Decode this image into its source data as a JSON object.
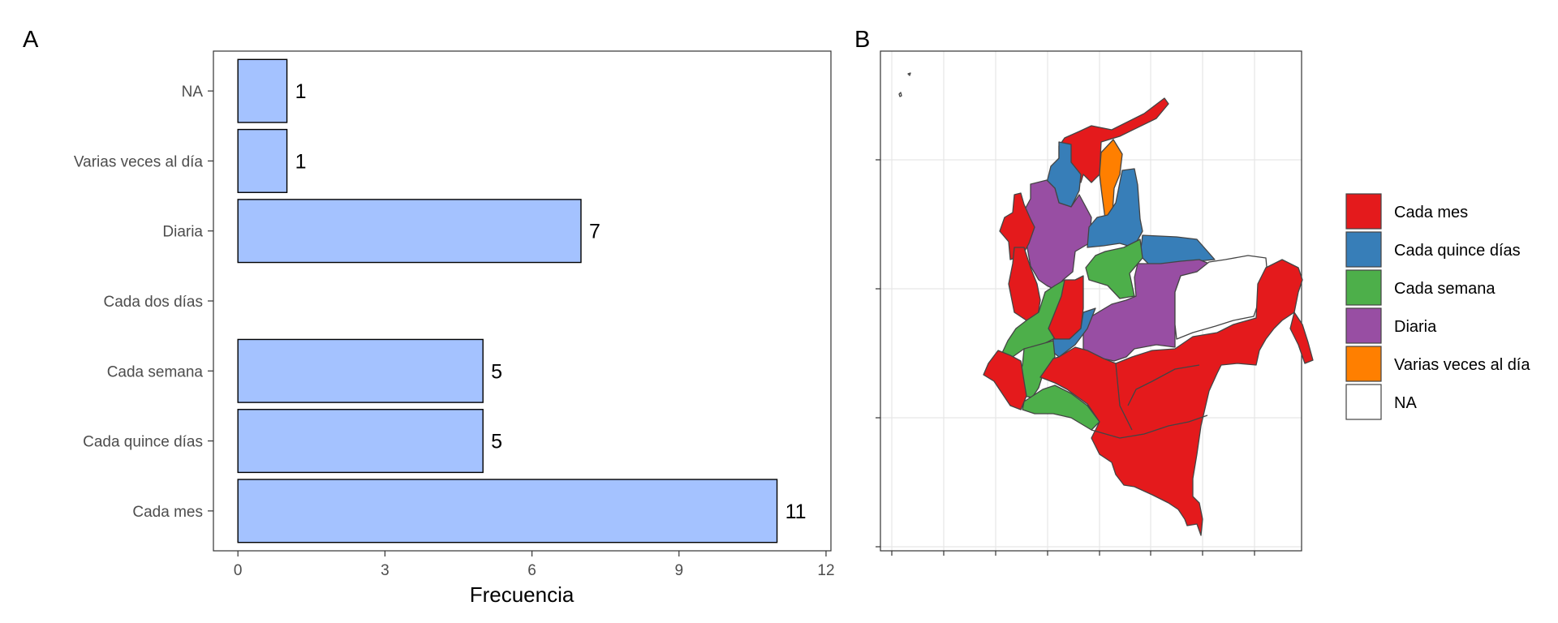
{
  "panels": {
    "a_tag": "A",
    "b_tag": "B"
  },
  "chart_data": [
    {
      "type": "bar",
      "orientation": "horizontal",
      "categories": [
        "Cada mes",
        "Cada quince días",
        "Cada semana",
        "Cada dos días",
        "Diaria",
        "Varias veces al día",
        "NA"
      ],
      "values": [
        11,
        5,
        5,
        null,
        7,
        1,
        1
      ],
      "data_labels": [
        "11",
        "5",
        "5",
        "",
        "7",
        "1",
        "1"
      ],
      "xlabel": "Frecuencia",
      "ylabel": "",
      "xlim": [
        -0.5,
        12.1
      ],
      "xticks": [
        "0",
        "3",
        "6",
        "9",
        "12"
      ],
      "bar_color": "#a4c2ff",
      "bar_outline": "#000000",
      "grid": false
    },
    {
      "type": "choropleth",
      "region": "Colombia",
      "axis_labels_shown": false,
      "grid": true,
      "legend": {
        "position": "right",
        "entries": [
          {
            "label": "Cada mes",
            "color": "#e41a1c"
          },
          {
            "label": "Cada quince días",
            "color": "#377eb8"
          },
          {
            "label": "Cada semana",
            "color": "#4daf4a"
          },
          {
            "label": "Diaria",
            "color": "#984ea3"
          },
          {
            "label": "Varias veces al día",
            "color": "#ff7f00"
          },
          {
            "label": "NA",
            "color": "#ffffff"
          }
        ]
      }
    }
  ]
}
